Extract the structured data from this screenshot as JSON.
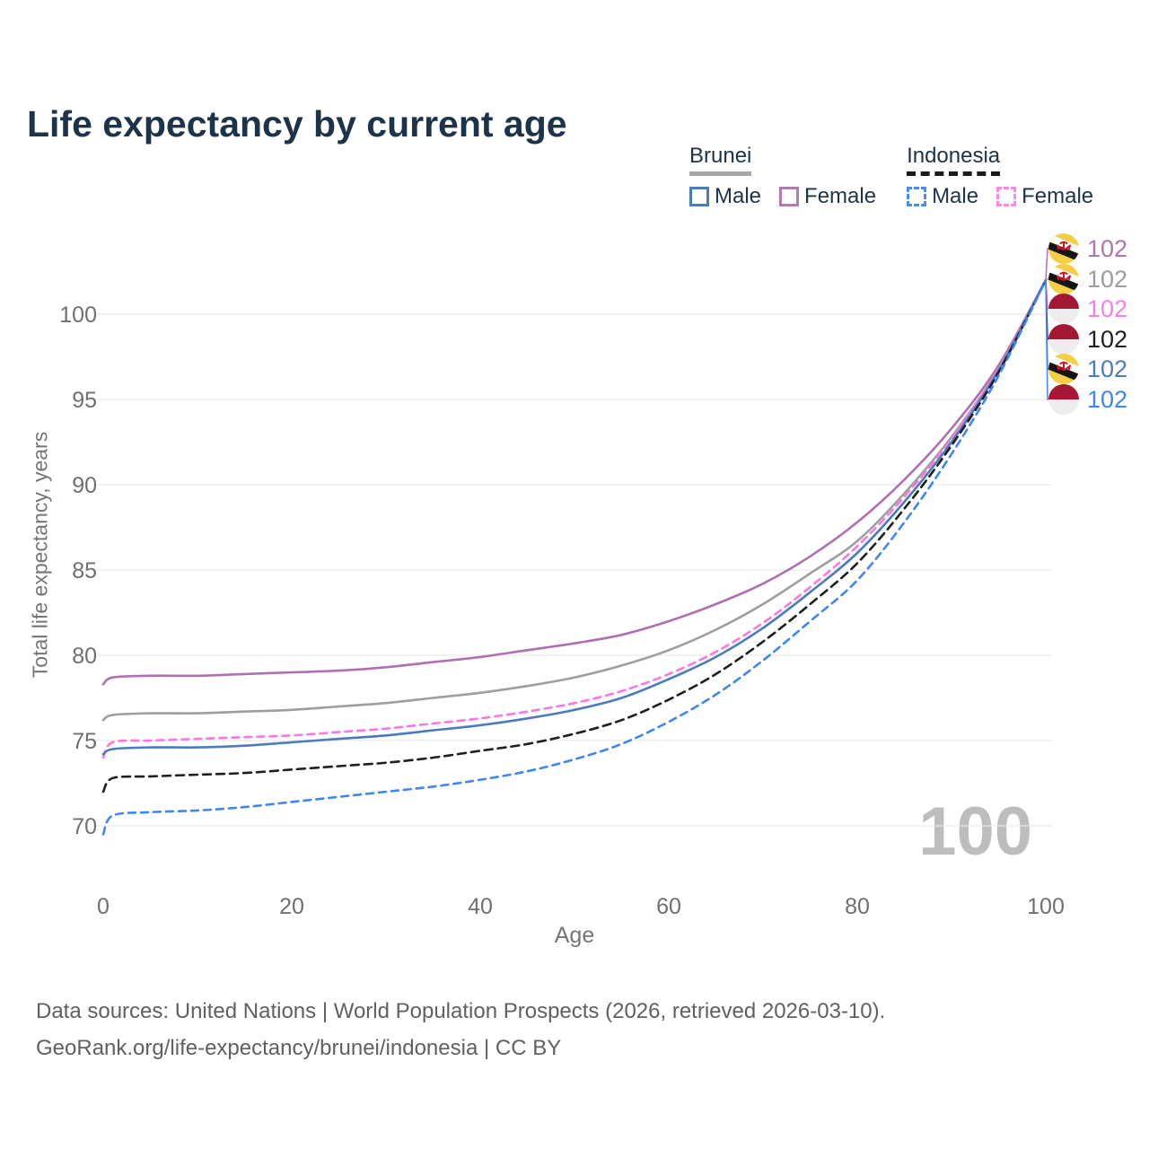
{
  "title": "Life expectancy by current age",
  "legend": {
    "groups": [
      {
        "label": "Brunei",
        "line_style": "solid",
        "underline_color": "#a6a6a6",
        "items": [
          {
            "label": "Male",
            "color": "#4a7cbc",
            "dashed": false
          },
          {
            "label": "Female",
            "color": "#b27bb2",
            "dashed": false
          }
        ]
      },
      {
        "label": "Indonesia",
        "line_style": "dashed",
        "underline_color": "#1a1a1a",
        "items": [
          {
            "label": "Male",
            "color": "#4a8cf5",
            "dashed": true
          },
          {
            "label": "Female",
            "color": "#fc8ae4",
            "dashed": true
          }
        ]
      }
    ]
  },
  "chart_data": {
    "type": "line",
    "title": "Life expectancy by current age",
    "xlabel": "Age",
    "ylabel": "Total life expectancy, years",
    "xlim": [
      0,
      100
    ],
    "ylim": [
      68.5,
      103
    ],
    "xticks": [
      0,
      20,
      40,
      60,
      80,
      100
    ],
    "yticks": [
      70,
      75,
      80,
      85,
      90,
      95,
      100
    ],
    "grid": "horizontal",
    "legend_position": "top-right",
    "watermark": "100",
    "x": [
      0,
      1,
      5,
      10,
      15,
      20,
      25,
      30,
      35,
      40,
      45,
      50,
      55,
      60,
      65,
      70,
      75,
      80,
      85,
      90,
      95,
      100
    ],
    "series": [
      {
        "name": "Brunei Female",
        "country": "Brunei",
        "sex": "Female",
        "color": "#b06fb0",
        "dash": "solid",
        "values": [
          78.3,
          78.7,
          78.8,
          78.8,
          78.9,
          79.0,
          79.1,
          79.3,
          79.6,
          79.9,
          80.3,
          80.7,
          81.2,
          82.0,
          83.0,
          84.2,
          85.8,
          87.8,
          90.3,
          93.3,
          97.0,
          102
        ]
      },
      {
        "name": "Brunei",
        "country": "Brunei",
        "sex": "Both",
        "color": "#9e9e9e",
        "dash": "solid",
        "values": [
          76.2,
          76.5,
          76.6,
          76.6,
          76.7,
          76.8,
          77.0,
          77.2,
          77.5,
          77.8,
          78.2,
          78.7,
          79.4,
          80.3,
          81.5,
          83.0,
          84.8,
          86.7,
          89.5,
          92.8,
          96.8,
          102
        ]
      },
      {
        "name": "Indonesia Female",
        "country": "Indonesia",
        "sex": "Female",
        "color": "#fc78e0",
        "dash": "dashed",
        "values": [
          74.0,
          74.9,
          75.0,
          75.1,
          75.2,
          75.3,
          75.5,
          75.7,
          76.0,
          76.3,
          76.7,
          77.2,
          77.9,
          78.9,
          80.2,
          81.9,
          84.0,
          86.4,
          89.3,
          92.7,
          96.8,
          102
        ]
      },
      {
        "name": "Brunei Male",
        "country": "Brunei",
        "sex": "Male",
        "color": "#4a7cbc",
        "dash": "solid",
        "values": [
          74.2,
          74.5,
          74.6,
          74.6,
          74.7,
          74.9,
          75.1,
          75.3,
          75.6,
          75.9,
          76.3,
          76.8,
          77.5,
          78.6,
          79.9,
          81.6,
          83.7,
          86.0,
          89.0,
          92.5,
          96.7,
          102
        ]
      },
      {
        "name": "Indonesia",
        "country": "Indonesia",
        "sex": "Both",
        "color": "#1f1f1f",
        "dash": "dashed",
        "values": [
          72.0,
          72.8,
          72.9,
          73.0,
          73.1,
          73.3,
          73.5,
          73.7,
          74.0,
          74.4,
          74.8,
          75.4,
          76.2,
          77.4,
          78.9,
          80.8,
          83.0,
          85.4,
          88.6,
          92.3,
          96.6,
          102
        ]
      },
      {
        "name": "Indonesia Male",
        "country": "Indonesia",
        "sex": "Male",
        "color": "#3f86f0",
        "dash": "dashed",
        "values": [
          69.5,
          70.6,
          70.8,
          70.9,
          71.1,
          71.4,
          71.7,
          72.0,
          72.3,
          72.7,
          73.2,
          73.9,
          74.8,
          76.1,
          77.7,
          79.7,
          82.0,
          84.4,
          87.8,
          91.8,
          96.4,
          102
        ]
      }
    ]
  },
  "end_labels": [
    {
      "value": "102",
      "series": "Brunei Female",
      "flag": "brunei",
      "color": "#b173ad"
    },
    {
      "value": "102",
      "series": "Brunei",
      "flag": "brunei",
      "color": "#9c9c9c"
    },
    {
      "value": "102",
      "series": "Indonesia Female",
      "flag": "indonesia",
      "color": "#fc7ce4"
    },
    {
      "value": "102",
      "series": "Indonesia",
      "flag": "indonesia",
      "color": "#1f1f1f"
    },
    {
      "value": "102",
      "series": "Brunei Male",
      "flag": "brunei",
      "color": "#4a7cbc"
    },
    {
      "value": "102",
      "series": "Indonesia Male",
      "flag": "indonesia",
      "color": "#3f86f0"
    }
  ],
  "footer": {
    "line1": "Data sources: United Nations | World Population Prospects (2026, retrieved 2026-03-10).",
    "line2": "GeoRank.org/life-expectancy/brunei/indonesia | CC BY"
  }
}
